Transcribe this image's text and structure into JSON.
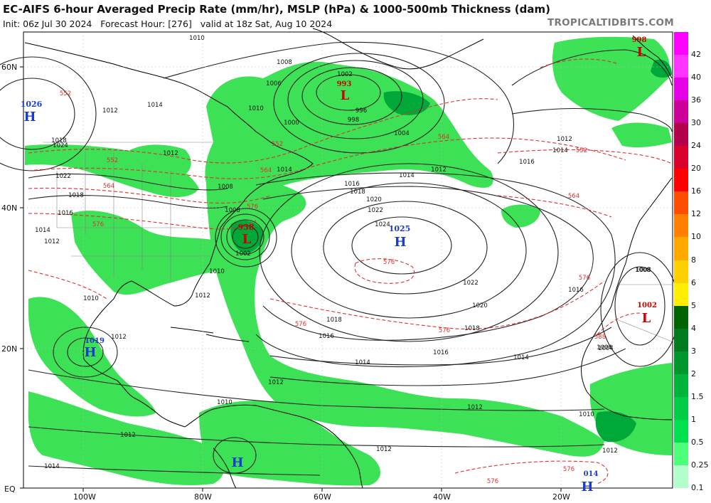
{
  "header": {
    "title": "EC-AIFS 6-hour Averaged Precip Rate (mm/hr), MSLP (hPa) & 1000-500mb Thickness (dam)",
    "init": "Init: 06z Jul 30 2024",
    "forecast_hour": "Forecast Hour: [276]",
    "valid": "valid at 18z Sat, Aug 10 2024",
    "brand": "TROPICALTIDBITS.COM"
  },
  "axes": {
    "latitudes": [
      "60N",
      "40N",
      "20N",
      "EQ"
    ],
    "longitudes": [
      "100W",
      "80W",
      "60W",
      "40W",
      "20W"
    ]
  },
  "colorbar": {
    "labels": [
      "42",
      "40",
      "36",
      "30",
      "24",
      "20",
      "16",
      "12",
      "10",
      "8",
      "6",
      "5",
      "4",
      "3",
      "2",
      "1.5",
      "1",
      "0.5",
      "0.25",
      "0.1"
    ],
    "colors": [
      "#ff00ff",
      "#ff33ff",
      "#e600e6",
      "#cc0099",
      "#b3004d",
      "#d9002b",
      "#ff0000",
      "#ff4d00",
      "#ff8000",
      "#ffa800",
      "#ffd000",
      "#ffee00",
      "#006400",
      "#007a1f",
      "#00962e",
      "#00b33c",
      "#00cc44",
      "#00e04e",
      "#4dff7a",
      "#b3ffcc"
    ]
  },
  "pressure_centers": [
    {
      "type": "L",
      "value": "993",
      "color": "#cc0000"
    },
    {
      "type": "L",
      "value": "958",
      "color": "#cc0000"
    },
    {
      "type": "L",
      "value": "998",
      "color": "#cc0000"
    },
    {
      "type": "L",
      "value": "1002",
      "color": "#cc0000"
    },
    {
      "type": "H",
      "value": "1025",
      "color": "#1a3ccc"
    },
    {
      "type": "H",
      "value": "1026",
      "color": "#1a3ccc"
    },
    {
      "type": "H",
      "value": "1019",
      "color": "#1a3ccc"
    },
    {
      "type": "H",
      "value": "014",
      "color": "#1a3ccc"
    },
    {
      "type": "H",
      "value": "",
      "color": "#1a3ccc"
    }
  ],
  "isobar_labels": [
    "1010",
    "1008",
    "1006",
    "1014",
    "1012",
    "1010",
    "1004",
    "1002",
    "1000",
    "996",
    "998",
    "1012",
    "1014",
    "1016",
    "1018",
    "1020",
    "1022",
    "1024",
    "1016",
    "1018",
    "1020",
    "1022",
    "1012",
    "1014",
    "1016",
    "1018",
    "1004",
    "1008",
    "1012",
    "1010",
    "1014",
    "1012",
    "1012",
    "1012",
    "1010",
    "1012",
    "1014",
    "1014",
    "1012",
    "1012",
    "1008",
    "1014",
    "1016",
    "1018",
    "1010",
    "1012",
    "1016",
    "1024",
    "1022",
    "1018",
    "1016",
    "1014",
    "1012",
    "1010",
    "1008",
    "1004",
    "1008",
    "1002"
  ],
  "thickness_labels": [
    "552",
    "552",
    "552",
    "564",
    "564",
    "576",
    "576",
    "564",
    "576",
    "576",
    "588",
    "576",
    "552",
    "564",
    "576",
    "576",
    "576"
  ]
}
